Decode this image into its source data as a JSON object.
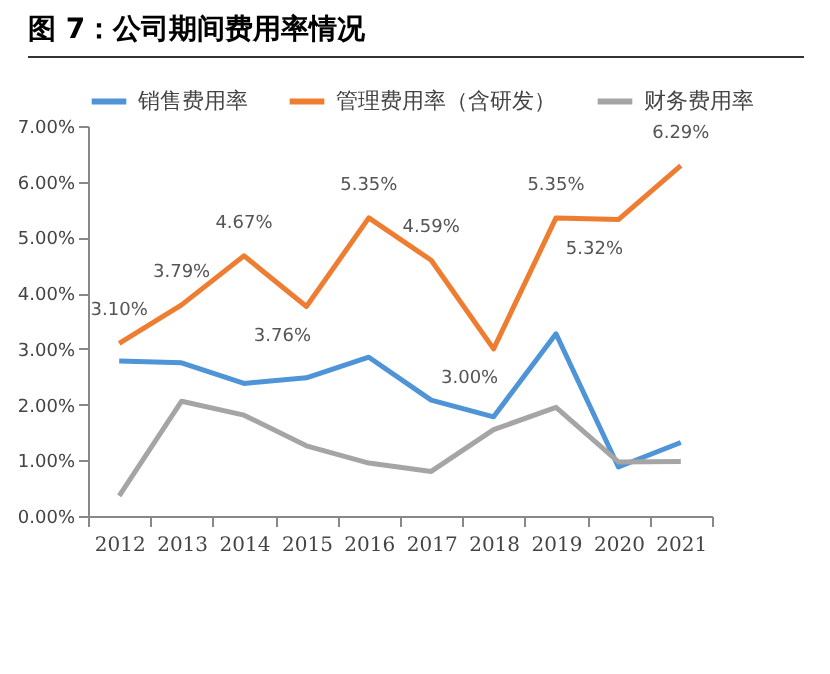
{
  "chart_data": {
    "type": "line",
    "title": "图 7：公司期间费用率情况",
    "categories": [
      "2012",
      "2013",
      "2014",
      "2015",
      "2016",
      "2017",
      "2018",
      "2019",
      "2020",
      "2021"
    ],
    "series": [
      {
        "name": "销售费用率",
        "color": "#4e94d6",
        "values": [
          2.78,
          2.75,
          2.38,
          2.48,
          2.85,
          2.08,
          1.78,
          3.27,
          0.88,
          1.32
        ]
      },
      {
        "name": "管理费用率（含研发）",
        "color": "#ee7d31",
        "values": [
          3.1,
          3.79,
          4.67,
          3.76,
          5.35,
          4.59,
          3.0,
          5.35,
          5.32,
          6.29
        ],
        "value_labels": [
          "3.10%",
          "3.79%",
          "4.67%",
          "3.76%",
          "5.35%",
          "4.59%",
          "3.00%",
          "5.35%",
          "5.32%",
          "6.29%"
        ]
      },
      {
        "name": "财务费用率",
        "color": "#a5a5a5",
        "values": [
          0.36,
          2.06,
          1.81,
          1.26,
          0.95,
          0.8,
          1.55,
          1.95,
          0.97,
          0.98
        ]
      }
    ],
    "ylim": [
      0,
      7
    ],
    "yticks": [
      {
        "value": 0,
        "label": "0.00%"
      },
      {
        "value": 1,
        "label": "1.00%"
      },
      {
        "value": 2,
        "label": "2.00%"
      },
      {
        "value": 3,
        "label": "3.00%"
      },
      {
        "value": 4,
        "label": "4.00%"
      },
      {
        "value": 5,
        "label": "5.00%"
      },
      {
        "value": 6,
        "label": "6.00%"
      },
      {
        "value": 7,
        "label": "7.00%"
      }
    ],
    "grid": false,
    "legend": "top",
    "marker": "none",
    "line_style": "solid"
  }
}
